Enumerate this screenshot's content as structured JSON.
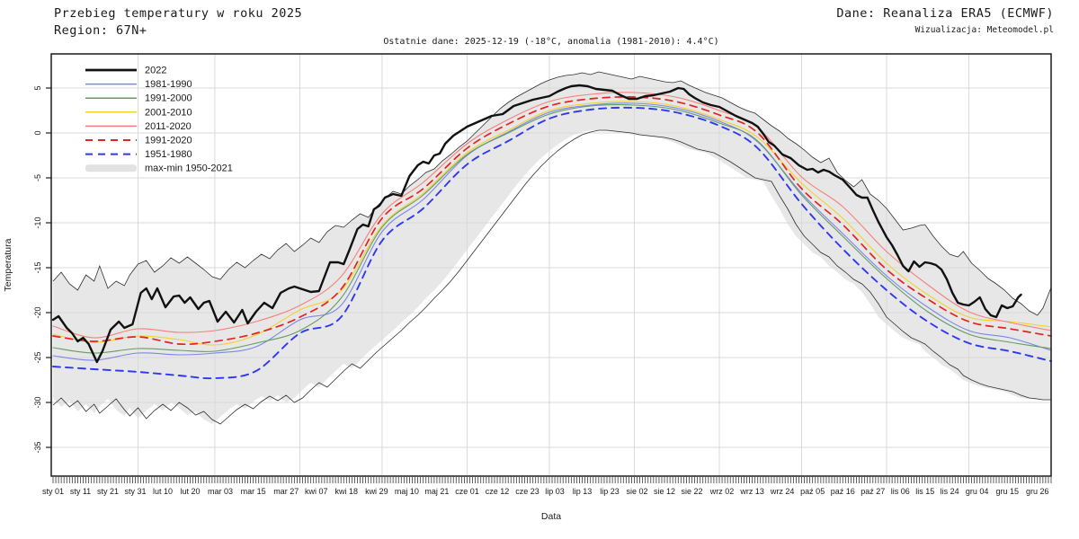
{
  "header": {
    "title": "Przebieg temperatury w roku 2025",
    "region": "Region: 67N+",
    "source": "Dane: Reanaliza ERA5 (ECMWF)",
    "credit": "Wizualizacja: Meteomodel.pl",
    "subtitle": "Ostatnie dane: 2025-12-19 (-18°C, anomalia (1981-2010): 4.4°C)"
  },
  "chart_data": {
    "type": "line",
    "xlabel": "Data",
    "ylabel": "Temperatura",
    "x_unit": "day_of_year",
    "x_range": [
      0,
      364
    ],
    "ylim": [
      -38.2,
      8.8
    ],
    "grid": true,
    "legend_position": "top-left-inside",
    "colors": {
      "grid": "#d9d9d9",
      "axis": "#1a1a1a",
      "band_fill": "#e7e7e7",
      "band_outline": "#2f2f2f",
      "s2022": "#111111",
      "s1981_1990": "#7b86e8",
      "s1991_2000": "#639c63",
      "s2001_2010": "#f2d22e",
      "s2011_2020": "#f58079",
      "s1991_2020": "#e32222",
      "s1951_1980": "#3038ee"
    },
    "yticks": [
      5,
      0,
      -5,
      -10,
      -15,
      -20,
      -25,
      -30,
      -35
    ],
    "month_grid_days": [
      31,
      59,
      90,
      120,
      151,
      181,
      212,
      243,
      273,
      304,
      334
    ],
    "xticks": [
      {
        "d": 0,
        "l": "sty 01"
      },
      {
        "d": 10,
        "l": "sty 11"
      },
      {
        "d": 20,
        "l": "sty 21"
      },
      {
        "d": 30,
        "l": "sty 31"
      },
      {
        "d": 40,
        "l": "lut 10"
      },
      {
        "d": 50,
        "l": "lut 20"
      },
      {
        "d": 61,
        "l": "mar 03"
      },
      {
        "d": 73,
        "l": "mar 15"
      },
      {
        "d": 85,
        "l": "mar 27"
      },
      {
        "d": 96,
        "l": "kwi 07"
      },
      {
        "d": 107,
        "l": "kwi 18"
      },
      {
        "d": 118,
        "l": "kwi 29"
      },
      {
        "d": 129,
        "l": "maj 10"
      },
      {
        "d": 140,
        "l": "maj 21"
      },
      {
        "d": 151,
        "l": "cze 01"
      },
      {
        "d": 162,
        "l": "cze 12"
      },
      {
        "d": 173,
        "l": "cze 23"
      },
      {
        "d": 183,
        "l": "lip 03"
      },
      {
        "d": 193,
        "l": "lip 13"
      },
      {
        "d": 203,
        "l": "lip 23"
      },
      {
        "d": 213,
        "l": "sie 02"
      },
      {
        "d": 223,
        "l": "sie 12"
      },
      {
        "d": 233,
        "l": "sie 22"
      },
      {
        "d": 244,
        "l": "wrz 02"
      },
      {
        "d": 255,
        "l": "wrz 13"
      },
      {
        "d": 266,
        "l": "wrz 24"
      },
      {
        "d": 277,
        "l": "paź 05"
      },
      {
        "d": 288,
        "l": "paź 16"
      },
      {
        "d": 299,
        "l": "paź 27"
      },
      {
        "d": 309,
        "l": "lis 06"
      },
      {
        "d": 318,
        "l": "lis 15"
      },
      {
        "d": 327,
        "l": "lis 24"
      },
      {
        "d": 337,
        "l": "gru 04"
      },
      {
        "d": 348,
        "l": "gru 15"
      },
      {
        "d": 359,
        "l": "gru 26"
      }
    ],
    "legend": [
      {
        "label": "2022",
        "swatch": "line",
        "color": "#111111",
        "dash": false,
        "width": 2.8
      },
      {
        "label": "1981-1990",
        "swatch": "line",
        "color": "#7b86e8",
        "dash": false,
        "width": 1.5
      },
      {
        "label": "1991-2000",
        "swatch": "line",
        "color": "#639c63",
        "dash": false,
        "width": 1.5
      },
      {
        "label": "2001-2010",
        "swatch": "line",
        "color": "#f2d22e",
        "dash": false,
        "width": 1.5
      },
      {
        "label": "2011-2020",
        "swatch": "line",
        "color": "#f58079",
        "dash": false,
        "width": 1.5
      },
      {
        "label": "1991-2020",
        "swatch": "line",
        "color": "#e32222",
        "dash": true,
        "width": 2.0
      },
      {
        "label": "1951-1980",
        "swatch": "line",
        "color": "#3038ee",
        "dash": true,
        "width": 2.0
      },
      {
        "label": "max-min 1950-2021",
        "swatch": "band",
        "color": "#e2e2e2",
        "dash": false,
        "width": 8
      }
    ],
    "band": {
      "name": "max-min 1950-2021",
      "days": [
        0,
        3,
        6,
        9,
        12,
        15,
        17,
        20,
        23,
        26,
        28,
        31,
        34,
        37,
        40,
        43,
        46,
        49,
        52,
        55,
        58,
        61,
        64,
        67,
        70,
        73,
        76,
        79,
        82,
        85,
        88,
        91,
        94,
        97,
        100,
        103,
        106,
        109,
        112,
        115,
        118,
        121,
        124,
        127,
        130,
        133,
        136,
        139,
        142,
        145,
        148,
        151,
        154,
        157,
        160,
        163,
        166,
        169,
        172,
        175,
        178,
        181,
        184,
        187,
        190,
        193,
        196,
        199,
        202,
        205,
        208,
        211,
        214,
        217,
        220,
        223,
        226,
        229,
        232,
        235,
        238,
        241,
        244,
        247,
        250,
        253,
        256,
        259,
        262,
        265,
        268,
        271,
        274,
        277,
        280,
        283,
        286,
        289,
        292,
        295,
        298,
        301,
        304,
        307,
        310,
        313,
        316,
        318,
        321,
        324,
        327,
        330,
        332,
        335,
        338,
        341,
        344,
        347,
        350,
        353,
        356,
        359,
        361,
        364
      ],
      "max": [
        -16.5,
        -15.5,
        -16.8,
        -17.5,
        -15.8,
        -16.5,
        -14.8,
        -17.3,
        -16.5,
        -17.0,
        -15.8,
        -14.6,
        -14.2,
        -15.5,
        -14.8,
        -13.9,
        -14.5,
        -13.8,
        -14.5,
        -15.2,
        -16.0,
        -16.3,
        -15.2,
        -14.4,
        -15.0,
        -14.2,
        -13.5,
        -14.0,
        -13.0,
        -12.3,
        -13.2,
        -12.5,
        -11.7,
        -12.2,
        -11.0,
        -10.3,
        -10.5,
        -9.7,
        -9.0,
        -9.4,
        -8.2,
        -7.3,
        -6.5,
        -6.8,
        -5.9,
        -5.2,
        -4.4,
        -4.0,
        -3.1,
        -2.4,
        -1.6,
        -0.9,
        0.0,
        0.9,
        1.8,
        2.7,
        3.4,
        4.0,
        4.5,
        5.0,
        5.5,
        5.9,
        6.2,
        6.4,
        6.5,
        6.7,
        6.5,
        6.8,
        6.6,
        6.4,
        6.2,
        6.0,
        6.3,
        6.1,
        5.9,
        5.7,
        5.6,
        5.8,
        5.3,
        4.9,
        4.5,
        4.2,
        3.9,
        3.4,
        2.9,
        2.5,
        2.2,
        1.5,
        0.8,
        0.2,
        -0.6,
        -1.2,
        -1.9,
        -2.7,
        -3.3,
        -2.8,
        -4.4,
        -5.3,
        -6.0,
        -5.2,
        -6.8,
        -7.5,
        -8.4,
        -9.6,
        -10.8,
        -10.6,
        -10.3,
        -10.2,
        -11.5,
        -12.6,
        -13.5,
        -13.8,
        -13.2,
        -14.5,
        -15.3,
        -16.2,
        -16.8,
        -17.5,
        -18.4,
        -19.0,
        -19.8,
        -20.3,
        -19.5,
        -17.2
      ],
      "min": [
        -30.3,
        -29.5,
        -30.5,
        -29.8,
        -31.0,
        -30.2,
        -31.2,
        -30.4,
        -29.6,
        -30.8,
        -31.5,
        -30.6,
        -31.8,
        -30.9,
        -30.2,
        -30.9,
        -30.0,
        -30.6,
        -31.4,
        -31.0,
        -31.9,
        -32.4,
        -31.6,
        -30.8,
        -30.2,
        -30.7,
        -29.9,
        -29.3,
        -29.8,
        -29.2,
        -30.0,
        -29.5,
        -28.6,
        -27.8,
        -28.3,
        -27.4,
        -26.5,
        -25.7,
        -26.2,
        -25.3,
        -24.4,
        -23.6,
        -22.8,
        -22.0,
        -21.1,
        -20.3,
        -19.4,
        -18.4,
        -17.5,
        -16.5,
        -15.4,
        -14.2,
        -13.0,
        -11.8,
        -10.6,
        -9.4,
        -8.2,
        -7.0,
        -5.8,
        -4.7,
        -3.7,
        -2.8,
        -2.0,
        -1.3,
        -0.7,
        -0.2,
        0.1,
        0.3,
        0.3,
        0.2,
        0.1,
        0.0,
        -0.2,
        -0.3,
        -0.4,
        -0.5,
        -0.7,
        -1.0,
        -1.4,
        -1.8,
        -2.0,
        -2.2,
        -2.7,
        -3.2,
        -3.8,
        -4.4,
        -5.0,
        -5.2,
        -5.4,
        -7.0,
        -8.5,
        -10.2,
        -11.5,
        -12.4,
        -13.3,
        -13.8,
        -14.8,
        -15.5,
        -16.3,
        -16.8,
        -17.7,
        -19.0,
        -20.5,
        -21.3,
        -22.1,
        -22.8,
        -23.2,
        -23.5,
        -24.3,
        -25.0,
        -25.8,
        -26.3,
        -27.0,
        -27.5,
        -27.9,
        -28.2,
        -28.4,
        -28.6,
        -28.8,
        -29.2,
        -29.5,
        -29.6,
        -29.7,
        -29.7,
        -29.7
      ]
    },
    "clim_days": [
      0,
      15,
      31,
      46,
      59,
      74,
      90,
      105,
      120,
      135,
      151,
      166,
      181,
      196,
      212,
      227,
      243,
      257,
      273,
      288,
      304,
      319,
      334,
      349,
      364
    ],
    "series": [
      {
        "name": "1981-1990",
        "color": "#7b86e8",
        "dash": false,
        "width": 1.1,
        "smooth": true,
        "values": [
          -24.8,
          -25.3,
          -24.5,
          -24.7,
          -24.5,
          -23.8,
          -20.8,
          -19.2,
          -11.0,
          -7.4,
          -2.5,
          0.1,
          2.3,
          3.1,
          3.3,
          2.8,
          1.3,
          -1.0,
          -6.7,
          -11.2,
          -15.9,
          -19.4,
          -22.0,
          -22.8,
          -24.2
        ]
      },
      {
        "name": "1991-2000",
        "color": "#639c63",
        "dash": false,
        "width": 1.1,
        "smooth": true,
        "values": [
          -23.9,
          -24.5,
          -24.0,
          -24.2,
          -24.3,
          -23.4,
          -22.0,
          -18.4,
          -10.5,
          -6.9,
          -2.4,
          0.0,
          2.1,
          3.0,
          3.1,
          2.6,
          1.1,
          -0.9,
          -6.9,
          -11.5,
          -16.2,
          -19.9,
          -22.4,
          -23.3,
          -24.0
        ]
      },
      {
        "name": "2001-2010",
        "color": "#f2d22e",
        "dash": false,
        "width": 1.1,
        "smooth": true,
        "values": [
          -22.4,
          -23.3,
          -22.6,
          -23.0,
          -23.6,
          -22.5,
          -19.7,
          -17.6,
          -10.3,
          -6.7,
          -2.2,
          0.3,
          2.5,
          3.3,
          3.5,
          3.0,
          1.5,
          -0.5,
          -5.6,
          -9.5,
          -14.5,
          -18.0,
          -20.5,
          -21.0,
          -21.6
        ]
      },
      {
        "name": "2011-2020",
        "color": "#f58079",
        "dash": false,
        "width": 1.1,
        "smooth": true,
        "values": [
          -21.5,
          -22.8,
          -21.8,
          -22.2,
          -22.0,
          -21.0,
          -19.2,
          -16.0,
          -9.0,
          -5.5,
          -1.2,
          1.5,
          3.5,
          4.3,
          4.5,
          4.0,
          2.5,
          0.6,
          -4.9,
          -8.2,
          -13.2,
          -16.9,
          -19.9,
          -21.1,
          -22.0
        ]
      },
      {
        "name": "1991-2020",
        "color": "#e32222",
        "dash": true,
        "width": 1.7,
        "smooth": true,
        "values": [
          -22.6,
          -23.2,
          -22.7,
          -23.5,
          -23.2,
          -22.3,
          -20.5,
          -17.4,
          -9.5,
          -6.2,
          -1.7,
          1.0,
          3.0,
          3.8,
          4.0,
          3.5,
          2.0,
          0.0,
          -6.2,
          -10.2,
          -15.2,
          -18.5,
          -21.0,
          -21.8,
          -22.6
        ]
      },
      {
        "name": "1951-1980",
        "color": "#3038ee",
        "dash": true,
        "width": 1.9,
        "smooth": true,
        "values": [
          -26.0,
          -26.3,
          -26.6,
          -27.0,
          -27.3,
          -26.5,
          -22.3,
          -20.5,
          -12.0,
          -8.4,
          -3.5,
          -0.9,
          1.6,
          2.6,
          2.8,
          2.3,
          0.8,
          -1.7,
          -7.9,
          -12.9,
          -17.5,
          -21.0,
          -23.4,
          -24.3,
          -25.4
        ]
      }
    ],
    "current_year": {
      "name": "2022",
      "color": "#111111",
      "width": 2.4,
      "days": [
        0,
        2,
        5,
        7,
        9,
        11,
        13,
        16,
        18,
        21,
        24,
        26,
        29,
        32,
        34,
        36,
        38,
        41,
        44,
        46,
        48,
        50,
        53,
        55,
        57,
        60,
        63,
        66,
        69,
        71,
        74,
        77,
        80,
        83,
        86,
        88,
        91,
        94,
        97,
        99,
        101,
        104,
        106,
        108,
        111,
        113,
        115,
        117,
        119,
        121,
        124,
        127,
        130,
        133,
        135,
        137,
        139,
        141,
        143,
        146,
        149,
        151,
        154,
        157,
        160,
        164,
        168,
        172,
        175,
        178,
        181,
        184,
        187,
        189,
        192,
        195,
        198,
        201,
        204,
        207,
        210,
        213,
        216,
        219,
        222,
        225,
        228,
        230,
        232,
        234,
        237,
        240,
        243,
        246,
        249,
        252,
        255,
        257,
        259,
        261,
        263,
        266,
        269,
        272,
        275,
        277,
        279,
        281,
        283,
        285,
        288,
        291,
        293,
        295,
        297,
        299,
        301,
        304,
        306,
        308,
        310,
        312,
        314,
        316,
        318,
        320,
        322,
        324,
        326,
        328,
        330,
        332,
        334,
        336,
        338,
        340,
        342,
        344,
        346,
        348,
        350,
        351,
        352,
        353
      ],
      "values": [
        -20.8,
        -20.4,
        -21.7,
        -22.3,
        -23.2,
        -22.8,
        -23.5,
        -25.5,
        -24.3,
        -21.9,
        -21.0,
        -21.7,
        -21.3,
        -17.8,
        -17.3,
        -18.5,
        -17.3,
        -19.4,
        -18.2,
        -18.1,
        -18.9,
        -18.3,
        -19.6,
        -18.9,
        -18.7,
        -21.0,
        -19.9,
        -21.1,
        -19.7,
        -21.2,
        -19.9,
        -18.9,
        -19.5,
        -17.8,
        -17.3,
        -17.1,
        -17.4,
        -17.7,
        -17.6,
        -16.0,
        -14.4,
        -14.4,
        -14.6,
        -13.1,
        -10.7,
        -10.2,
        -10.4,
        -8.5,
        -8.1,
        -7.2,
        -6.8,
        -7.0,
        -4.8,
        -3.6,
        -3.2,
        -3.4,
        -2.5,
        -2.3,
        -1.2,
        -0.3,
        0.3,
        0.7,
        1.1,
        1.5,
        1.9,
        2.1,
        3.0,
        3.4,
        3.7,
        3.9,
        4.1,
        4.6,
        5.0,
        5.2,
        5.3,
        5.2,
        4.9,
        4.8,
        4.7,
        4.2,
        3.8,
        3.8,
        4.1,
        4.2,
        4.4,
        4.6,
        5.0,
        4.9,
        4.3,
        3.9,
        3.4,
        3.1,
        2.9,
        2.4,
        1.9,
        1.5,
        1.1,
        0.7,
        -0.1,
        -1.0,
        -1.4,
        -2.4,
        -2.8,
        -3.6,
        -4.1,
        -4.0,
        -4.4,
        -4.1,
        -4.3,
        -4.7,
        -5.2,
        -6.2,
        -6.9,
        -7.2,
        -7.2,
        -8.6,
        -9.9,
        -11.6,
        -12.5,
        -13.6,
        -14.8,
        -15.4,
        -14.3,
        -14.9,
        -14.4,
        -14.5,
        -14.7,
        -15.2,
        -16.3,
        -17.8,
        -18.9,
        -19.1,
        -19.2,
        -18.8,
        -18.3,
        -19.6,
        -20.3,
        -20.5,
        -19.2,
        -19.5,
        -19.3,
        -18.8,
        -18.3,
        -18.0
      ]
    }
  }
}
